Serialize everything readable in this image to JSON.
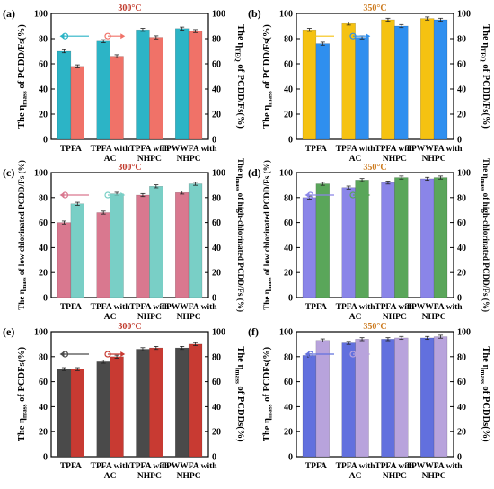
{
  "colors": {
    "teal": "#2cb4c6",
    "salmon": "#f07268",
    "gold": "#f5c211",
    "blue": "#2f8fef",
    "pink": "#d9788f",
    "mint": "#79cfc6",
    "periwinkle": "#8a85e8",
    "green": "#5aa65a",
    "darkgray": "#4a4a4a",
    "red": "#c83a32",
    "slateblue": "#6270de",
    "lavender": "#b8a3dc",
    "temp_red": "#c0392b",
    "temp_orange": "#cc7a1e"
  },
  "chart_data": [
    {
      "panel": "(a)",
      "temperature": "300°C",
      "type": "bar",
      "categories": [
        "TPFA",
        "TPFA with AC",
        "TPFA with NHPC",
        "TPWWFA with NHPC"
      ],
      "series": [
        {
          "name": "",
          "values": [
            70,
            78,
            87,
            88
          ],
          "color": "teal",
          "axis": "left"
        },
        {
          "name": "",
          "values": [
            58,
            66,
            81,
            86
          ],
          "color": "salmon",
          "axis": "right"
        }
      ],
      "ylabel_left": "The ηmass of PCDD/Fs(%)",
      "ylabel_right": "The ηTEQ of PCDD/Fs(%)",
      "ylim": [
        0,
        100
      ],
      "yticks": [
        "0",
        "20",
        "40",
        "60",
        "80",
        "100"
      ],
      "legend": "top-left",
      "grid": false
    },
    {
      "panel": "(b)",
      "temperature": "350°C",
      "type": "bar",
      "categories": [
        "TPFA",
        "TPFA with AC",
        "TPFA with NHPC",
        "TPWWFA with NHPC"
      ],
      "series": [
        {
          "name": "",
          "values": [
            87,
            92,
            95,
            96
          ],
          "color": "gold",
          "axis": "left"
        },
        {
          "name": "",
          "values": [
            76,
            81,
            90,
            95
          ],
          "color": "blue",
          "axis": "right"
        }
      ],
      "ylabel_left": "The ηmass of PCDD/Fs(%)",
      "ylabel_right": "The ηTEQ of PCDD/Fs(%)",
      "ylim": [
        0,
        100
      ],
      "yticks": [
        "0",
        "20",
        "40",
        "60",
        "80",
        "100"
      ],
      "legend": "top-left",
      "grid": false
    },
    {
      "panel": "(c)",
      "temperature": "300°C",
      "type": "bar",
      "categories": [
        "TPFA",
        "TPFA with AC",
        "TPFA with NHPC",
        "TPWWFA with NHPC"
      ],
      "series": [
        {
          "name": "",
          "values": [
            60,
            68,
            82,
            84
          ],
          "color": "pink",
          "axis": "left"
        },
        {
          "name": "",
          "values": [
            75,
            83,
            89,
            91
          ],
          "color": "mint",
          "axis": "right"
        }
      ],
      "ylabel_left": "The ηmass of low chlorinated PCDD/Fs (%)",
      "ylabel_right": "The ηmass of high-chlorinated PCDD/Fs (%)",
      "ylim": [
        0,
        100
      ],
      "yticks": [
        "0",
        "20",
        "40",
        "60",
        "80",
        "100"
      ],
      "legend": "top-left",
      "grid": false
    },
    {
      "panel": "(d)",
      "temperature": "350°C",
      "type": "bar",
      "categories": [
        "TPFA",
        "TPFA with AC",
        "TPFA with NHPC",
        "TPWWFA with NHPC"
      ],
      "series": [
        {
          "name": "",
          "values": [
            80,
            88,
            92,
            95
          ],
          "color": "periwinkle",
          "axis": "left"
        },
        {
          "name": "",
          "values": [
            91,
            94,
            96,
            96
          ],
          "color": "green",
          "axis": "right"
        }
      ],
      "ylabel_left": "The ηmass of low chlorinated PCDD/Fs (%)",
      "ylabel_right": "The ηmass of high-chlorinated PCDD/Fs (%)",
      "ylim": [
        0,
        100
      ],
      "yticks": [
        "0",
        "20",
        "40",
        "60",
        "80",
        "100"
      ],
      "legend": "top-left",
      "grid": false
    },
    {
      "panel": "(e)",
      "temperature": "300°C",
      "type": "bar",
      "categories": [
        "TPFA",
        "TPFA with AC",
        "TPFA with NHPC",
        "TPWWFA with NHPC"
      ],
      "series": [
        {
          "name": "",
          "values": [
            70,
            76,
            86,
            87
          ],
          "color": "darkgray",
          "axis": "left"
        },
        {
          "name": "",
          "values": [
            70,
            80,
            87,
            90
          ],
          "color": "red",
          "axis": "right"
        }
      ],
      "ylabel_left": "The ηmass of PCDFs(%)",
      "ylabel_right": "The ηmass of PCDDs(%)",
      "ylim": [
        0,
        100
      ],
      "yticks": [
        "0",
        "20",
        "40",
        "60",
        "80",
        "100"
      ],
      "legend": "top-left",
      "grid": false
    },
    {
      "panel": "(f)",
      "temperature": "350°C",
      "type": "bar",
      "categories": [
        "TPFA",
        "TPFA with AC",
        "TPFA with NHPC",
        "TPWWFA with NHPC"
      ],
      "series": [
        {
          "name": "",
          "values": [
            81,
            91,
            94,
            95
          ],
          "color": "slateblue",
          "axis": "left"
        },
        {
          "name": "",
          "values": [
            93,
            94,
            95,
            96
          ],
          "color": "lavender",
          "axis": "right"
        }
      ],
      "ylabel_left": "The ηmass of PCDFs(%)",
      "ylabel_right": "The ηmass of PCDDs(%)",
      "ylim": [
        0,
        100
      ],
      "yticks": [
        "0",
        "20",
        "40",
        "60",
        "80",
        "100"
      ],
      "legend": "top-left",
      "grid": false
    }
  ]
}
